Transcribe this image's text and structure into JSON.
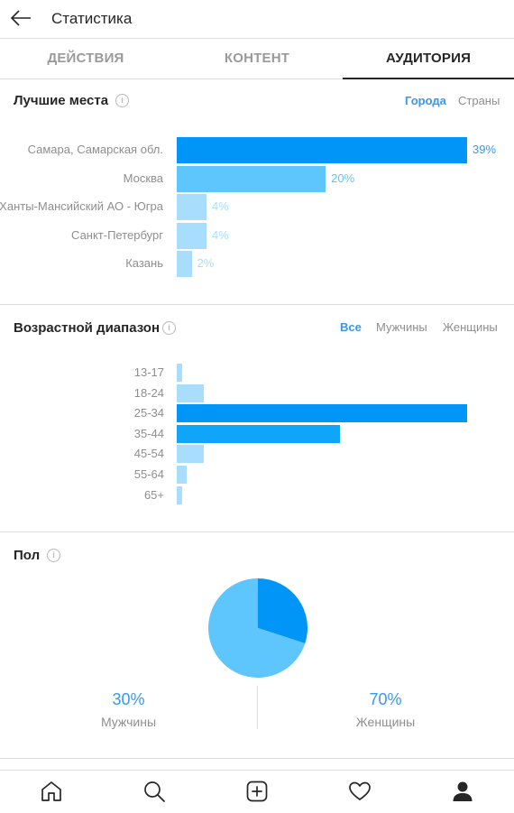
{
  "header": {
    "title": "Статистика",
    "back_icon": "arrow-left-icon"
  },
  "tabs": [
    {
      "label": "ДЕЙСТВИЯ",
      "active": false
    },
    {
      "label": "КОНТЕНТ",
      "active": false
    },
    {
      "label": "АУДИТОРИЯ",
      "active": true
    }
  ],
  "top_locations": {
    "title": "Лучшие места",
    "filters": [
      {
        "label": "Города",
        "active": true
      },
      {
        "label": "Страны",
        "active": false
      }
    ],
    "chart_data": {
      "type": "bar",
      "orientation": "horizontal",
      "categories": [
        "Самара, Самарская обл.",
        "Москва",
        "Ханты-Мансийский АО - Югра",
        "Санкт-Петербург",
        "Казань"
      ],
      "values": [
        39,
        20,
        4,
        4,
        2
      ],
      "value_labels": [
        "39%",
        "20%",
        "4%",
        "4%",
        "2%"
      ],
      "colors": [
        "#0095f6",
        "#5fc6fd",
        "#a8defb",
        "#a8defb",
        "#a8defb"
      ],
      "label_colors": [
        "#3897f0",
        "#5fc6fd",
        "#a8defb",
        "#a8defb",
        "#a8defb"
      ]
    }
  },
  "age_range": {
    "title": "Возрастной диапазон",
    "filters": [
      {
        "label": "Все",
        "active": true
      },
      {
        "label": "Мужчины",
        "active": false
      },
      {
        "label": "Женщины",
        "active": false
      }
    ],
    "chart_data": {
      "type": "bar",
      "orientation": "horizontal",
      "categories": [
        "13-17",
        "18-24",
        "25-34",
        "35-44",
        "45-54",
        "55-64",
        "65+"
      ],
      "values": [
        0.8,
        3.7,
        40,
        22.5,
        3.7,
        1.4,
        0.8
      ],
      "colors": [
        "#a8defb",
        "#a8defb",
        "#0095f6",
        "#0fa6fa",
        "#a8defb",
        "#a8defb",
        "#a8defb"
      ]
    }
  },
  "gender": {
    "title": "Пол",
    "chart_data": {
      "type": "pie",
      "categories": [
        "Мужчины",
        "Женщины"
      ],
      "values": [
        30,
        70
      ],
      "colors": [
        "#0095f6",
        "#5fc6fd"
      ]
    },
    "male": {
      "percent": "30%",
      "label": "Мужчины"
    },
    "female": {
      "percent": "70%",
      "label": "Женщины"
    }
  },
  "bottom_nav": {
    "items": [
      "home-icon",
      "search-icon",
      "add-post-icon",
      "heart-icon",
      "profile-icon"
    ]
  }
}
